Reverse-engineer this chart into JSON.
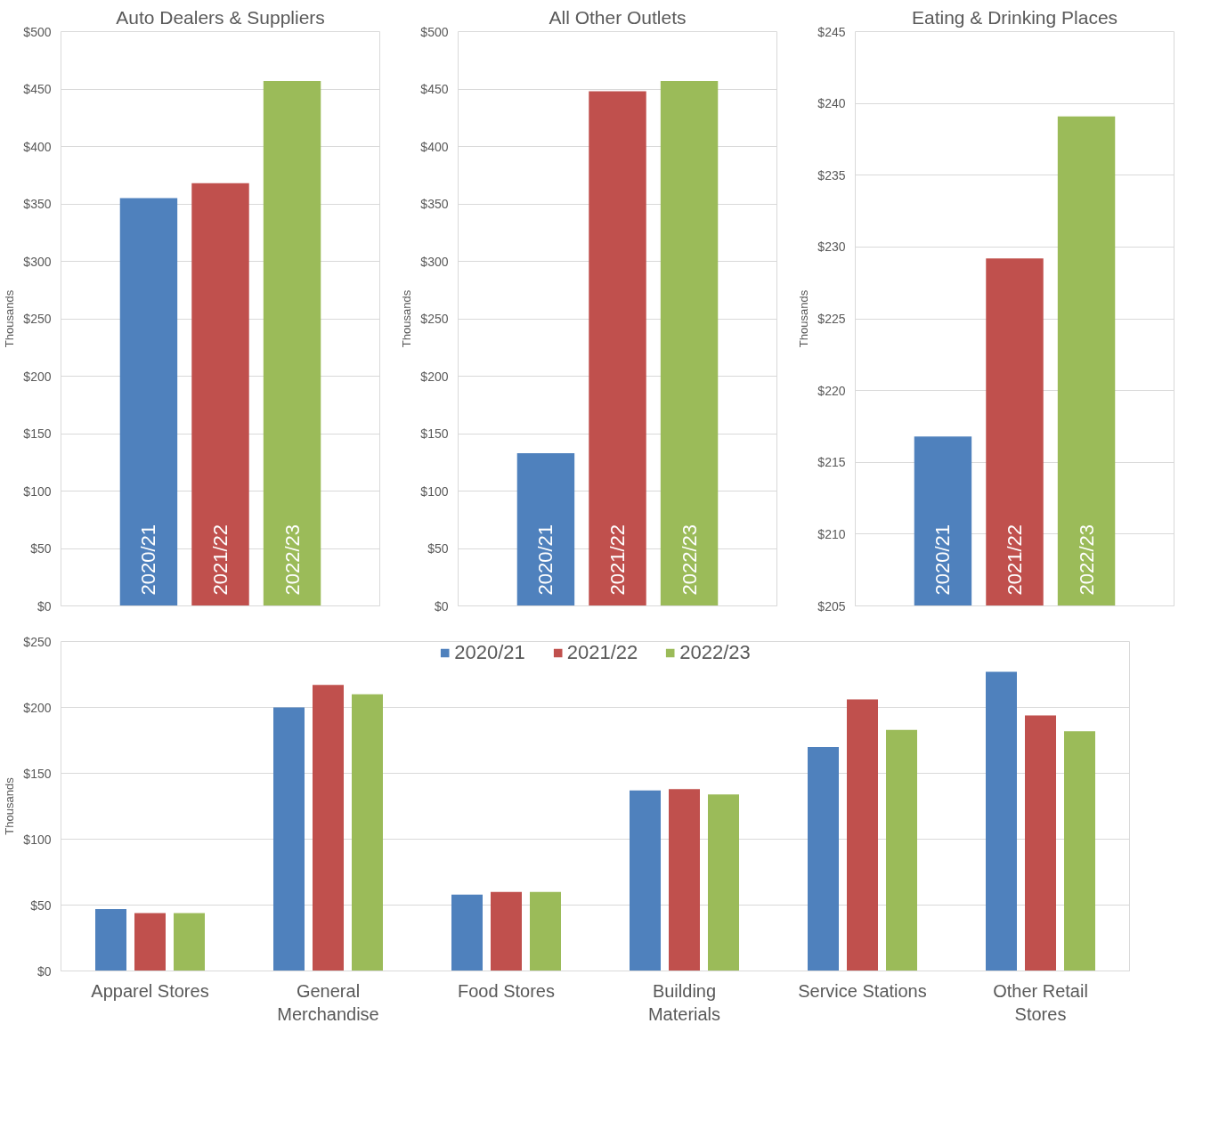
{
  "chart_data": [
    {
      "type": "bar",
      "title": "Auto Dealers & Suppliers",
      "ylabel": "Thousands",
      "categories": [
        null
      ],
      "tick_labels": "y",
      "grid": "y",
      "legend": false,
      "series": [
        {
          "name": "2020/21",
          "color": "#4f81bd",
          "values": [
            355
          ]
        },
        {
          "name": "2021/22",
          "color": "#c0504d",
          "values": [
            368
          ]
        },
        {
          "name": "2022/23",
          "color": "#9bbb59",
          "values": [
            457
          ]
        }
      ],
      "ylim": [
        0,
        500
      ],
      "yticks": [
        {
          "value": 0,
          "label": "$0"
        },
        {
          "value": 50,
          "label": "$50"
        },
        {
          "value": 100,
          "label": "$100"
        },
        {
          "value": 150,
          "label": "$150"
        },
        {
          "value": 200,
          "label": "$200"
        },
        {
          "value": 250,
          "label": "$250"
        },
        {
          "value": 300,
          "label": "$300"
        },
        {
          "value": 350,
          "label": "$350"
        },
        {
          "value": 400,
          "label": "$400"
        },
        {
          "value": 450,
          "label": "$450"
        },
        {
          "value": 500,
          "label": "$500"
        }
      ]
    },
    {
      "type": "bar",
      "title": "All Other Outlets",
      "ylabel": "Thousands",
      "categories": [
        null
      ],
      "tick_labels": "y",
      "grid": "y",
      "legend": false,
      "series": [
        {
          "name": "2020/21",
          "color": "#4f81bd",
          "values": [
            133
          ]
        },
        {
          "name": "2021/22",
          "color": "#c0504d",
          "values": [
            448
          ]
        },
        {
          "name": "2022/23",
          "color": "#9bbb59",
          "values": [
            457
          ]
        }
      ],
      "ylim": [
        0,
        500
      ],
      "yticks": [
        {
          "value": 0,
          "label": "$0"
        },
        {
          "value": 50,
          "label": "$50"
        },
        {
          "value": 100,
          "label": "$100"
        },
        {
          "value": 150,
          "label": "$150"
        },
        {
          "value": 200,
          "label": "$200"
        },
        {
          "value": 250,
          "label": "$250"
        },
        {
          "value": 300,
          "label": "$300"
        },
        {
          "value": 350,
          "label": "$350"
        },
        {
          "value": 400,
          "label": "$400"
        },
        {
          "value": 450,
          "label": "$450"
        },
        {
          "value": 500,
          "label": "$500"
        }
      ]
    },
    {
      "type": "bar",
      "title": "Eating & Drinking Places",
      "ylabel": "Thousands",
      "categories": [
        null
      ],
      "tick_labels": "y",
      "grid": "y",
      "legend": false,
      "series": [
        {
          "name": "2020/21",
          "color": "#4f81bd",
          "values": [
            216.8
          ]
        },
        {
          "name": "2021/22",
          "color": "#c0504d",
          "values": [
            229.2
          ]
        },
        {
          "name": "2022/23",
          "color": "#9bbb59",
          "values": [
            239.1
          ]
        }
      ],
      "ylim": [
        205,
        245
      ],
      "yticks": [
        {
          "value": 205,
          "label": "$205"
        },
        {
          "value": 210,
          "label": "$210"
        },
        {
          "value": 215,
          "label": "$215"
        },
        {
          "value": 220,
          "label": "$220"
        },
        {
          "value": 225,
          "label": "$225"
        },
        {
          "value": 230,
          "label": "$230"
        },
        {
          "value": 235,
          "label": "$235"
        },
        {
          "value": 240,
          "label": "$240"
        },
        {
          "value": 245,
          "label": "$245"
        }
      ]
    },
    {
      "type": "bar",
      "ylabel": "Thousands",
      "categories": [
        "Apparel Stores",
        "General Merchandise",
        "Food Stores",
        "Building Materials",
        "Service Stations",
        "Other Retail Stores"
      ],
      "grid": "y",
      "legend": "top",
      "series": [
        {
          "name": "2020/21",
          "color": "#4f81bd",
          "values": [
            47,
            200,
            58,
            137,
            170,
            227
          ]
        },
        {
          "name": "2021/22",
          "color": "#c0504d",
          "values": [
            44,
            217,
            60,
            138,
            206,
            194
          ]
        },
        {
          "name": "2022/23",
          "color": "#9bbb59",
          "values": [
            44,
            210,
            60,
            134,
            183,
            182
          ]
        }
      ],
      "ylim": [
        0,
        250
      ],
      "yticks": [
        {
          "value": 0,
          "label": "$0"
        },
        {
          "value": 50,
          "label": "$50"
        },
        {
          "value": 100,
          "label": "$100"
        },
        {
          "value": 150,
          "label": "$150"
        },
        {
          "value": 200,
          "label": "$200"
        },
        {
          "value": 250,
          "label": "$250"
        }
      ]
    }
  ]
}
